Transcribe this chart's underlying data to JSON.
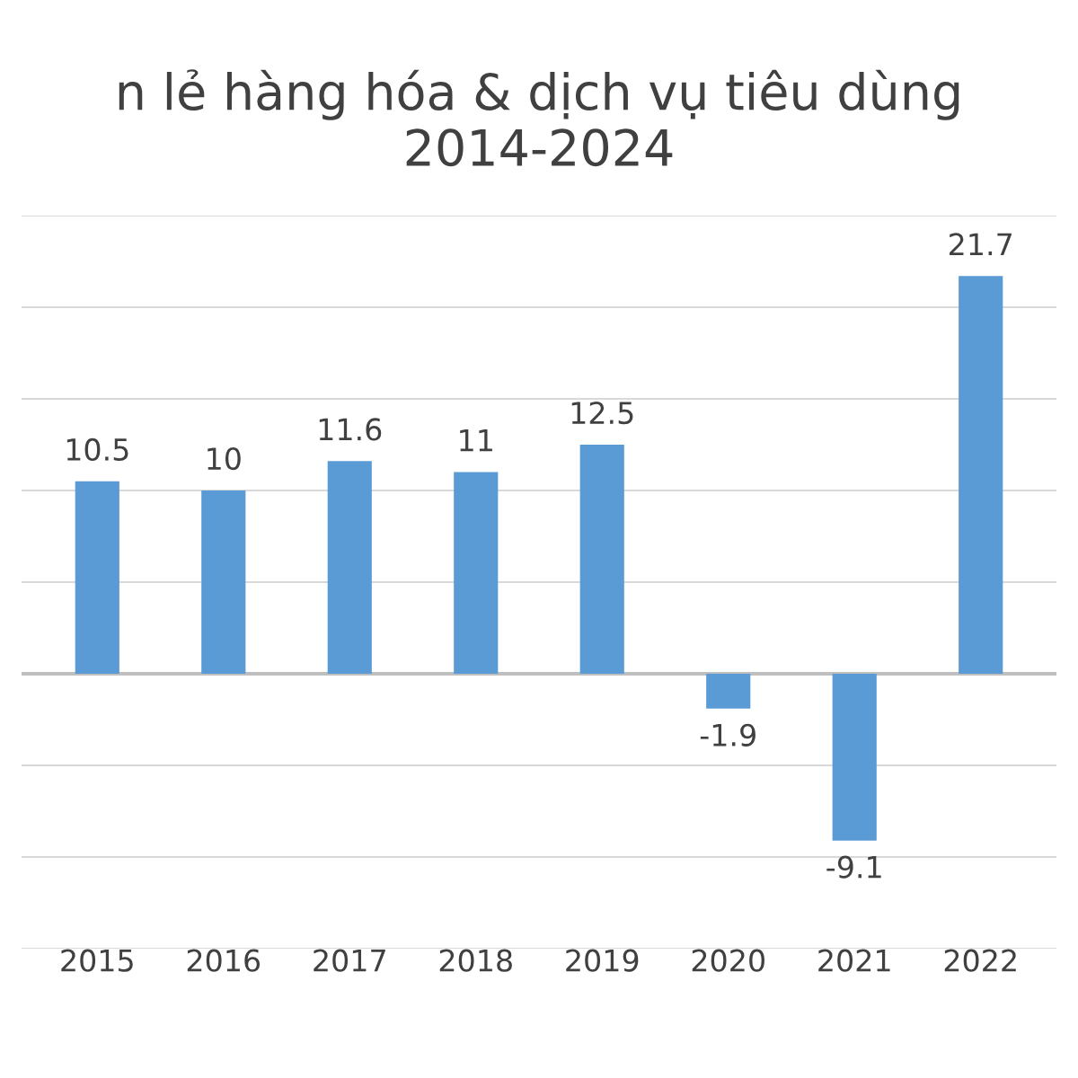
{
  "chart_data": {
    "type": "bar",
    "title": "n lẻ hàng hóa & dịch vụ tiêu dùng\n2014-2024",
    "categories": [
      "2015",
      "2016",
      "2017",
      "2018",
      "2019",
      "2020",
      "2021",
      "2022"
    ],
    "values": [
      10.5,
      10,
      11.6,
      11,
      12.5,
      -1.9,
      -9.1,
      21.7
    ],
    "color": "#5b9bd5",
    "data_labels": true,
    "ylim": [
      -15,
      25
    ],
    "yticks": [
      {
        "value": -15,
        "label": null
      },
      {
        "value": -10,
        "label": null
      },
      {
        "value": -5,
        "label": null
      },
      {
        "value": 0,
        "label": null
      },
      {
        "value": 5,
        "label": null
      },
      {
        "value": 10,
        "label": null
      },
      {
        "value": 15,
        "label": null
      },
      {
        "value": 20,
        "label": null
      },
      {
        "value": 25,
        "label": null
      }
    ],
    "grid": "y",
    "tick_labels": "x"
  }
}
